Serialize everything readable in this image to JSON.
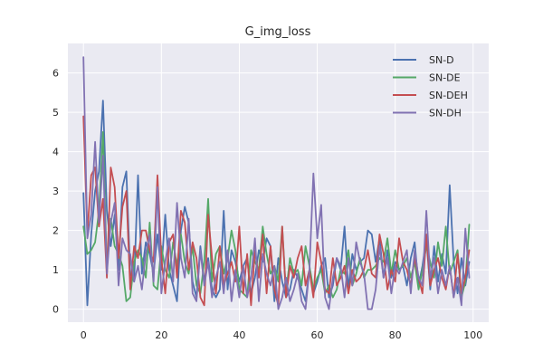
{
  "chart_data": {
    "type": "line",
    "title": "G_img_loss",
    "xlabel": "",
    "ylabel": "",
    "xlim": [
      -4,
      104
    ],
    "ylim": [
      -0.33,
      6.75
    ],
    "xticks": [
      0,
      20,
      40,
      60,
      80,
      100
    ],
    "yticks": [
      0,
      1,
      2,
      3,
      4,
      5,
      6
    ],
    "grid": true,
    "legend_position": "top-right",
    "colors": {
      "background": "#eaeaf2",
      "grid": "#ffffff",
      "text": "#262626"
    },
    "series": [
      {
        "name": "SN-D",
        "color": "#4c72b0",
        "x": [
          0,
          1,
          2,
          3,
          4,
          5,
          6,
          7,
          8,
          9,
          10,
          11,
          12,
          13,
          14,
          15,
          16,
          17,
          18,
          19,
          20,
          21,
          22,
          23,
          24,
          25,
          26,
          27,
          28,
          29,
          30,
          31,
          32,
          33,
          34,
          35,
          36,
          37,
          38,
          39,
          40,
          41,
          42,
          43,
          44,
          45,
          46,
          47,
          48,
          49,
          50,
          51,
          52,
          53,
          54,
          55,
          56,
          57,
          58,
          59,
          60,
          61,
          62,
          63,
          64,
          65,
          66,
          67,
          68,
          69,
          70,
          71,
          72,
          73,
          74,
          75,
          76,
          77,
          78,
          79,
          80,
          81,
          82,
          83,
          84,
          85,
          86,
          87,
          88,
          89,
          90,
          91,
          92,
          93,
          94,
          95,
          96,
          97,
          98,
          99
        ],
        "values": [
          2.95,
          0.1,
          1.9,
          3.0,
          3.5,
          5.3,
          2.5,
          1.6,
          2.4,
          1.0,
          3.1,
          3.5,
          0.9,
          0.7,
          3.4,
          0.9,
          1.7,
          1.4,
          0.9,
          1.9,
          1.0,
          2.4,
          1.0,
          0.6,
          0.2,
          2.0,
          2.6,
          2.2,
          0.7,
          0.3,
          1.6,
          0.7,
          1.3,
          0.5,
          0.3,
          0.5,
          2.5,
          0.5,
          1.5,
          1.2,
          0.7,
          1.1,
          1.3,
          0.4,
          0.8,
          1.5,
          1.2,
          1.8,
          1.6,
          0.2,
          1.3,
          0.7,
          0.3,
          0.5,
          1.0,
          0.8,
          0.5,
          0.2,
          1.0,
          0.4,
          0.7,
          1.1,
          1.3,
          0.3,
          0.6,
          1.3,
          1.0,
          2.1,
          0.5,
          1.4,
          1.0,
          1.2,
          1.3,
          2.0,
          1.9,
          1.2,
          1.8,
          0.8,
          1.5,
          0.8,
          1.2,
          1.0,
          1.1,
          0.6,
          1.3,
          1.7,
          0.6,
          1.1,
          1.8,
          0.5,
          1.6,
          0.7,
          1.4,
          0.9,
          3.15,
          1.2,
          0.4,
          1.3,
          0.6,
          1.2
        ]
      },
      {
        "name": "SN-DE",
        "color": "#55a868",
        "x": [
          0,
          1,
          2,
          3,
          4,
          5,
          6,
          7,
          8,
          9,
          10,
          11,
          12,
          13,
          14,
          15,
          16,
          17,
          18,
          19,
          20,
          21,
          22,
          23,
          24,
          25,
          26,
          27,
          28,
          29,
          30,
          31,
          32,
          33,
          34,
          35,
          36,
          37,
          38,
          39,
          40,
          41,
          42,
          43,
          44,
          45,
          46,
          47,
          48,
          49,
          50,
          51,
          52,
          53,
          54,
          55,
          56,
          57,
          58,
          59,
          60,
          61,
          62,
          63,
          64,
          65,
          66,
          67,
          68,
          69,
          70,
          71,
          72,
          73,
          74,
          75,
          76,
          77,
          78,
          79,
          80,
          81,
          82,
          83,
          84,
          85,
          86,
          87,
          88,
          89,
          90,
          91,
          92,
          93,
          94,
          95,
          96,
          97,
          98,
          99
        ],
        "values": [
          2.1,
          1.4,
          1.5,
          1.7,
          2.5,
          4.5,
          1.0,
          2.3,
          1.6,
          1.4,
          1.1,
          0.2,
          0.3,
          1.2,
          1.5,
          1.3,
          0.8,
          2.2,
          0.6,
          0.5,
          1.6,
          1.0,
          0.8,
          1.7,
          1.1,
          1.9,
          1.2,
          0.9,
          1.6,
          0.6,
          0.4,
          1.2,
          2.8,
          0.7,
          1.4,
          1.6,
          0.9,
          1.3,
          2.0,
          1.5,
          0.5,
          0.4,
          0.3,
          1.5,
          1.2,
          1.0,
          2.1,
          1.4,
          0.9,
          1.1,
          0.7,
          2.1,
          0.4,
          1.3,
          0.9,
          1.0,
          0.6,
          1.6,
          1.1,
          0.5,
          0.8,
          1.0,
          0.4,
          0.6,
          0.3,
          0.5,
          1.0,
          0.9,
          1.5,
          0.6,
          0.9,
          1.3,
          0.8,
          1.0,
          1.0,
          1.1,
          1.3,
          1.2,
          1.8,
          0.9,
          1.5,
          1.0,
          1.1,
          1.3,
          0.8,
          1.2,
          0.5,
          1.0,
          1.6,
          1.2,
          0.8,
          1.7,
          1.1,
          2.1,
          0.9,
          1.2,
          1.5,
          0.3,
          0.7,
          2.15
        ]
      },
      {
        "name": "SN-DEH",
        "color": "#c44e52",
        "x": [
          0,
          1,
          2,
          3,
          4,
          5,
          6,
          7,
          8,
          9,
          10,
          11,
          12,
          13,
          14,
          15,
          16,
          17,
          18,
          19,
          20,
          21,
          22,
          23,
          24,
          25,
          26,
          27,
          28,
          29,
          30,
          31,
          32,
          33,
          34,
          35,
          36,
          37,
          38,
          39,
          40,
          41,
          42,
          43,
          44,
          45,
          46,
          47,
          48,
          49,
          50,
          51,
          52,
          53,
          54,
          55,
          56,
          57,
          58,
          59,
          60,
          61,
          62,
          63,
          64,
          65,
          66,
          67,
          68,
          69,
          70,
          71,
          72,
          73,
          74,
          75,
          76,
          77,
          78,
          79,
          80,
          81,
          82,
          83,
          84,
          85,
          86,
          87,
          88,
          89,
          90,
          91,
          92,
          93,
          94,
          95,
          96,
          97,
          98,
          99
        ],
        "values": [
          4.9,
          1.9,
          3.4,
          3.6,
          2.1,
          2.8,
          0.8,
          3.6,
          3.1,
          1.3,
          2.6,
          3.0,
          0.5,
          1.6,
          1.3,
          2.0,
          2.0,
          1.5,
          1.2,
          3.4,
          1.3,
          0.4,
          1.7,
          1.9,
          0.8,
          2.5,
          2.2,
          1.0,
          1.7,
          1.3,
          0.3,
          0.1,
          2.4,
          1.3,
          0.4,
          1.6,
          0.6,
          0.9,
          1.2,
          0.7,
          2.1,
          0.4,
          1.4,
          0.1,
          1.5,
          0.8,
          1.9,
          0.4,
          1.6,
          0.5,
          0.1,
          2.1,
          0.3,
          1.1,
          0.8,
          1.3,
          1.6,
          0.6,
          1.0,
          0.3,
          1.7,
          1.2,
          0.5,
          0.4,
          1.3,
          0.6,
          0.8,
          1.1,
          0.4,
          1.0,
          0.7,
          0.8,
          1.0,
          1.5,
          0.9,
          0.8,
          1.9,
          1.4,
          0.5,
          1.0,
          0.7,
          1.8,
          1.2,
          1.0,
          0.6,
          1.3,
          0.8,
          0.4,
          1.9,
          0.6,
          1.0,
          1.3,
          0.8,
          0.5,
          1.1,
          0.3,
          1.4,
          0.4,
          0.8,
          1.5
        ]
      },
      {
        "name": "SN-DH",
        "color": "#8172b2",
        "x": [
          0,
          1,
          2,
          3,
          4,
          5,
          6,
          7,
          8,
          9,
          10,
          11,
          12,
          13,
          14,
          15,
          16,
          17,
          18,
          19,
          20,
          21,
          22,
          23,
          24,
          25,
          26,
          27,
          28,
          29,
          30,
          31,
          32,
          33,
          34,
          35,
          36,
          37,
          38,
          39,
          40,
          41,
          42,
          43,
          44,
          45,
          46,
          47,
          48,
          49,
          50,
          51,
          52,
          53,
          54,
          55,
          56,
          57,
          58,
          59,
          60,
          61,
          62,
          63,
          64,
          65,
          66,
          67,
          68,
          69,
          70,
          71,
          72,
          73,
          74,
          75,
          76,
          77,
          78,
          79,
          80,
          81,
          82,
          83,
          84,
          85,
          86,
          87,
          88,
          89,
          90,
          91,
          92,
          93,
          94,
          95,
          96,
          97,
          98,
          99
        ],
        "values": [
          6.4,
          1.8,
          2.4,
          4.25,
          2.2,
          3.9,
          0.9,
          2.2,
          2.7,
          0.6,
          1.8,
          1.5,
          1.4,
          0.7,
          1.1,
          0.5,
          1.4,
          1.9,
          0.7,
          3.1,
          0.4,
          1.2,
          1.8,
          0.7,
          2.7,
          1.3,
          0.8,
          2.3,
          0.4,
          0.2,
          1.5,
          0.6,
          1.2,
          0.3,
          0.8,
          1.2,
          0.4,
          1.5,
          0.2,
          1.0,
          0.3,
          1.1,
          0.3,
          0.8,
          1.8,
          0.2,
          1.4,
          0.9,
          0.6,
          1.1,
          0.0,
          0.3,
          0.8,
          0.2,
          0.5,
          0.9,
          0.2,
          0.0,
          1.0,
          3.45,
          1.8,
          2.65,
          0.3,
          0.0,
          0.8,
          1.3,
          1.1,
          0.3,
          1.3,
          0.6,
          1.7,
          1.2,
          0.9,
          0.0,
          0.0,
          0.5,
          1.6,
          0.8,
          1.3,
          0.4,
          1.1,
          0.9,
          1.2,
          1.5,
          0.4,
          1.5,
          0.8,
          0.6,
          2.5,
          0.8,
          1.3,
          0.4,
          1.0,
          0.6,
          1.1,
          0.3,
          0.8,
          0.1,
          2.05,
          0.8
        ]
      }
    ]
  }
}
